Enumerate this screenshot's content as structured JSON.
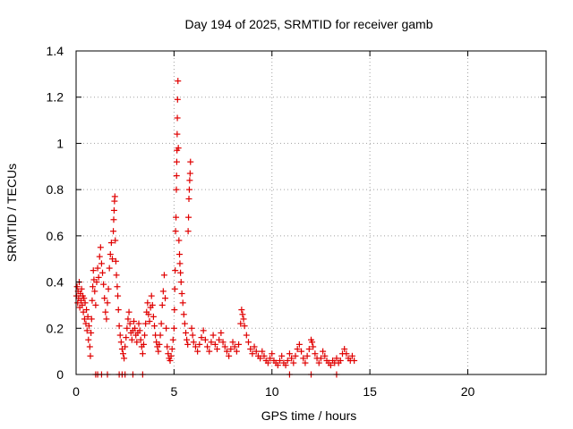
{
  "chart_data": {
    "type": "scatter",
    "title": "Day 194 of 2025, SRMTID for receiver gamb",
    "xlabel": "GPS time / hours",
    "ylabel": "SRMTID / TECUs",
    "xlim": [
      0,
      24
    ],
    "ylim": [
      0,
      1.4
    ],
    "xticks": [
      0,
      5,
      10,
      15,
      20
    ],
    "xtick_labels": [
      "0",
      "5",
      "10",
      "15",
      "20"
    ],
    "yticks": [
      0,
      0.2,
      0.4,
      0.6,
      0.8,
      1.0,
      1.2,
      1.4
    ],
    "ytick_labels": [
      "0",
      "0.2",
      "0.4",
      "0.6",
      "0.8",
      "1",
      "1.2",
      "1.4"
    ],
    "grid": true,
    "marker": "+",
    "color": "#e00000",
    "series": [
      {
        "name": "SRMTID",
        "points": [
          [
            0.02,
            0.34
          ],
          [
            0.05,
            0.38
          ],
          [
            0.08,
            0.31
          ],
          [
            0.1,
            0.36
          ],
          [
            0.13,
            0.33
          ],
          [
            0.16,
            0.4
          ],
          [
            0.19,
            0.29
          ],
          [
            0.22,
            0.35
          ],
          [
            0.25,
            0.32
          ],
          [
            0.28,
            0.37
          ],
          [
            0.31,
            0.3
          ],
          [
            0.34,
            0.34
          ],
          [
            0.37,
            0.27
          ],
          [
            0.4,
            0.33
          ],
          [
            0.43,
            0.24
          ],
          [
            0.46,
            0.31
          ],
          [
            0.5,
            0.22
          ],
          [
            0.53,
            0.28
          ],
          [
            0.56,
            0.19
          ],
          [
            0.6,
            0.25
          ],
          [
            0.63,
            0.15
          ],
          [
            0.66,
            0.21
          ],
          [
            0.7,
            0.12
          ],
          [
            0.73,
            0.08
          ],
          [
            0.76,
            0.18
          ],
          [
            0.79,
            0.24
          ],
          [
            0.82,
            0.32
          ],
          [
            0.85,
            0.38
          ],
          [
            0.88,
            0.45
          ],
          [
            0.91,
            0.41
          ],
          [
            0.95,
            0.36
          ],
          [
            1.0,
            0.3
          ],
          [
            1.05,
            0.4
          ],
          [
            1.1,
            0.46
          ],
          [
            1.15,
            0.42
          ],
          [
            1.2,
            0.51
          ],
          [
            1.25,
            0.55
          ],
          [
            1.3,
            0.48
          ],
          [
            1.35,
            0.44
          ],
          [
            1.4,
            0.39
          ],
          [
            1.45,
            0.33
          ],
          [
            1.5,
            0.27
          ],
          [
            1.55,
            0.24
          ],
          [
            1.6,
            0.31
          ],
          [
            1.65,
            0.37
          ],
          [
            1.7,
            0.46
          ],
          [
            1.75,
            0.52
          ],
          [
            1.8,
            0.57
          ],
          [
            1.85,
            0.5
          ],
          [
            1.9,
            0.62
          ],
          [
            1.92,
            0.67
          ],
          [
            1.94,
            0.71
          ],
          [
            1.96,
            0.75
          ],
          [
            1.98,
            0.77
          ],
          [
            2.0,
            0.58
          ],
          [
            2.03,
            0.49
          ],
          [
            2.06,
            0.43
          ],
          [
            2.1,
            0.38
          ],
          [
            2.13,
            0.34
          ],
          [
            2.16,
            0.28
          ],
          [
            2.2,
            0.21
          ],
          [
            2.25,
            0.17
          ],
          [
            2.3,
            0.14
          ],
          [
            2.35,
            0.11
          ],
          [
            2.4,
            0.09
          ],
          [
            2.45,
            0.07
          ],
          [
            2.5,
            0.12
          ],
          [
            2.55,
            0.16
          ],
          [
            2.6,
            0.2
          ],
          [
            2.65,
            0.24
          ],
          [
            2.7,
            0.27
          ],
          [
            2.75,
            0.22
          ],
          [
            2.8,
            0.18
          ],
          [
            2.85,
            0.15
          ],
          [
            2.9,
            0.19
          ],
          [
            2.95,
            0.23
          ],
          [
            3.0,
            0.2
          ],
          [
            3.05,
            0.17
          ],
          [
            3.1,
            0.14
          ],
          [
            3.15,
            0.18
          ],
          [
            3.2,
            0.22
          ],
          [
            3.25,
            0.19
          ],
          [
            3.3,
            0.15
          ],
          [
            3.35,
            0.12
          ],
          [
            3.4,
            0.09
          ],
          [
            3.45,
            0.13
          ],
          [
            3.5,
            0.17
          ],
          [
            3.55,
            0.22
          ],
          [
            3.6,
            0.27
          ],
          [
            3.65,
            0.31
          ],
          [
            3.7,
            0.26
          ],
          [
            3.75,
            0.23
          ],
          [
            3.8,
            0.29
          ],
          [
            3.85,
            0.34
          ],
          [
            3.9,
            0.3
          ],
          [
            3.95,
            0.25
          ],
          [
            4.0,
            0.21
          ],
          [
            4.05,
            0.17
          ],
          [
            4.1,
            0.14
          ],
          [
            4.15,
            0.12
          ],
          [
            4.2,
            0.1
          ],
          [
            4.25,
            0.13
          ],
          [
            4.3,
            0.17
          ],
          [
            4.35,
            0.22
          ],
          [
            4.4,
            0.3
          ],
          [
            4.45,
            0.36
          ],
          [
            4.5,
            0.43
          ],
          [
            4.55,
            0.33
          ],
          [
            4.6,
            0.2
          ],
          [
            4.65,
            0.12
          ],
          [
            4.7,
            0.09
          ],
          [
            4.75,
            0.07
          ],
          [
            4.8,
            0.06
          ],
          [
            4.85,
            0.08
          ],
          [
            4.9,
            0.11
          ],
          [
            4.95,
            0.15
          ],
          [
            5.0,
            0.2
          ],
          [
            5.02,
            0.28
          ],
          [
            5.04,
            0.37
          ],
          [
            5.06,
            0.45
          ],
          [
            5.08,
            0.62
          ],
          [
            5.1,
            0.68
          ],
          [
            5.12,
            0.8
          ],
          [
            5.13,
            0.86
          ],
          [
            5.14,
            0.92
          ],
          [
            5.15,
            0.97
          ],
          [
            5.16,
            1.04
          ],
          [
            5.17,
            1.11
          ],
          [
            5.18,
            1.19
          ],
          [
            5.2,
            1.27
          ],
          [
            5.22,
            0.98
          ],
          [
            5.25,
            0.58
          ],
          [
            5.28,
            0.52
          ],
          [
            5.3,
            0.48
          ],
          [
            5.33,
            0.44
          ],
          [
            5.36,
            0.4
          ],
          [
            5.4,
            0.35
          ],
          [
            5.45,
            0.31
          ],
          [
            5.5,
            0.26
          ],
          [
            5.55,
            0.22
          ],
          [
            5.6,
            0.18
          ],
          [
            5.65,
            0.15
          ],
          [
            5.7,
            0.13
          ],
          [
            5.72,
            0.62
          ],
          [
            5.74,
            0.68
          ],
          [
            5.76,
            0.76
          ],
          [
            5.78,
            0.8
          ],
          [
            5.8,
            0.84
          ],
          [
            5.82,
            0.87
          ],
          [
            5.84,
            0.92
          ],
          [
            5.9,
            0.2
          ],
          [
            5.95,
            0.17
          ],
          [
            6.0,
            0.14
          ],
          [
            6.1,
            0.12
          ],
          [
            6.2,
            0.1
          ],
          [
            6.3,
            0.13
          ],
          [
            6.4,
            0.16
          ],
          [
            6.5,
            0.19
          ],
          [
            6.6,
            0.15
          ],
          [
            6.7,
            0.12
          ],
          [
            6.8,
            0.1
          ],
          [
            6.9,
            0.14
          ],
          [
            7.0,
            0.17
          ],
          [
            7.1,
            0.13
          ],
          [
            7.2,
            0.11
          ],
          [
            7.3,
            0.15
          ],
          [
            7.4,
            0.18
          ],
          [
            7.5,
            0.14
          ],
          [
            7.6,
            0.12
          ],
          [
            7.7,
            0.1
          ],
          [
            7.8,
            0.08
          ],
          [
            7.9,
            0.11
          ],
          [
            8.0,
            0.14
          ],
          [
            8.1,
            0.12
          ],
          [
            8.2,
            0.1
          ],
          [
            8.3,
            0.13
          ],
          [
            8.4,
            0.22
          ],
          [
            8.45,
            0.28
          ],
          [
            8.5,
            0.26
          ],
          [
            8.55,
            0.24
          ],
          [
            8.6,
            0.21
          ],
          [
            8.7,
            0.17
          ],
          [
            8.8,
            0.14
          ],
          [
            8.9,
            0.11
          ],
          [
            9.0,
            0.09
          ],
          [
            9.1,
            0.12
          ],
          [
            9.2,
            0.1
          ],
          [
            9.3,
            0.08
          ],
          [
            9.4,
            0.07
          ],
          [
            9.5,
            0.1
          ],
          [
            9.6,
            0.08
          ],
          [
            9.7,
            0.06
          ],
          [
            9.8,
            0.05
          ],
          [
            9.9,
            0.07
          ],
          [
            10.0,
            0.09
          ],
          [
            10.1,
            0.06
          ],
          [
            10.2,
            0.05
          ],
          [
            10.3,
            0.04
          ],
          [
            10.4,
            0.06
          ],
          [
            10.5,
            0.08
          ],
          [
            10.6,
            0.05
          ],
          [
            10.7,
            0.04
          ],
          [
            10.8,
            0.06
          ],
          [
            10.9,
            0.09
          ],
          [
            11.0,
            0.07
          ],
          [
            11.1,
            0.05
          ],
          [
            11.2,
            0.08
          ],
          [
            11.3,
            0.11
          ],
          [
            11.4,
            0.13
          ],
          [
            11.5,
            0.1
          ],
          [
            11.6,
            0.07
          ],
          [
            11.7,
            0.05
          ],
          [
            11.8,
            0.08
          ],
          [
            11.9,
            0.11
          ],
          [
            12.0,
            0.15
          ],
          [
            12.05,
            0.14
          ],
          [
            12.1,
            0.12
          ],
          [
            12.2,
            0.09
          ],
          [
            12.3,
            0.07
          ],
          [
            12.4,
            0.05
          ],
          [
            12.5,
            0.07
          ],
          [
            12.6,
            0.1
          ],
          [
            12.7,
            0.08
          ],
          [
            12.8,
            0.06
          ],
          [
            12.9,
            0.05
          ],
          [
            13.0,
            0.04
          ],
          [
            13.1,
            0.06
          ],
          [
            13.2,
            0.05
          ],
          [
            13.3,
            0.07
          ],
          [
            13.4,
            0.05
          ],
          [
            13.5,
            0.06
          ],
          [
            13.6,
            0.09
          ],
          [
            13.7,
            0.11
          ],
          [
            13.8,
            0.09
          ],
          [
            13.9,
            0.07
          ],
          [
            14.0,
            0.06
          ],
          [
            14.1,
            0.08
          ],
          [
            14.2,
            0.06
          ],
          [
            1.0,
            0.0
          ],
          [
            1.1,
            0.0
          ],
          [
            1.3,
            0.0
          ],
          [
            1.6,
            0.0
          ],
          [
            2.2,
            0.0
          ],
          [
            2.35,
            0.0
          ],
          [
            2.5,
            0.0
          ],
          [
            2.9,
            0.0
          ],
          [
            3.4,
            0.0
          ],
          [
            10.9,
            0.0
          ],
          [
            12.0,
            0.0
          ],
          [
            13.3,
            0.0
          ]
        ]
      }
    ]
  }
}
